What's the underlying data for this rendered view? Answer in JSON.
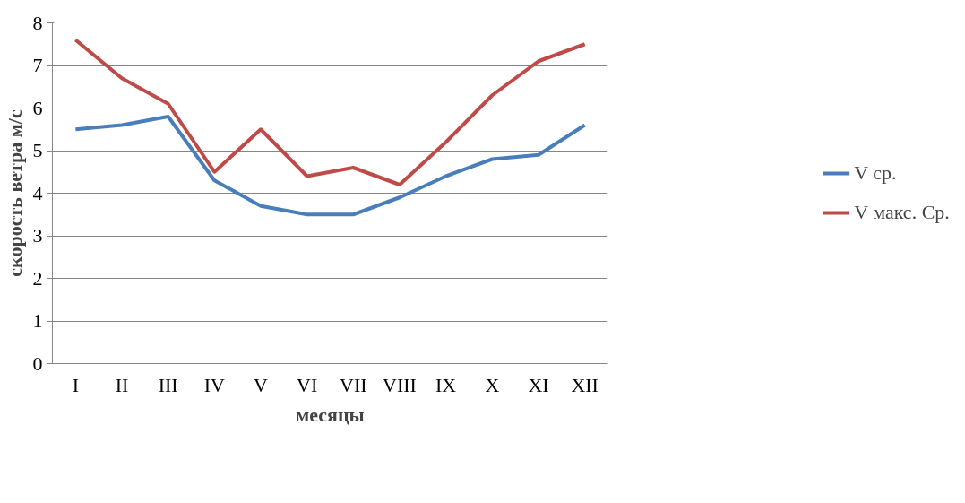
{
  "chart_data": {
    "type": "line",
    "xlabel": "месяцы",
    "ylabel": "скорость ветра м/с",
    "categories": [
      "I",
      "II",
      "III",
      "IV",
      "V",
      "VI",
      "VII",
      "VIII",
      "IX",
      "X",
      "XI",
      "XII"
    ],
    "series": [
      {
        "name": "V ср.",
        "color": "#4a7ebb",
        "values": [
          5.5,
          5.6,
          5.8,
          4.3,
          3.7,
          3.5,
          3.5,
          3.9,
          4.4,
          4.8,
          4.9,
          5.6
        ]
      },
      {
        "name": "V макс. Ср.",
        "color": "#be4b48",
        "values": [
          7.6,
          6.7,
          6.1,
          4.5,
          5.5,
          4.4,
          4.6,
          4.2,
          5.2,
          6.3,
          7.1,
          7.5
        ]
      }
    ],
    "ylim": [
      0,
      8
    ],
    "yticks": [
      0,
      1,
      2,
      3,
      4,
      5,
      6,
      7,
      8
    ],
    "grid": "y",
    "legend": "right",
    "marker": "none",
    "line_style": "solid"
  }
}
